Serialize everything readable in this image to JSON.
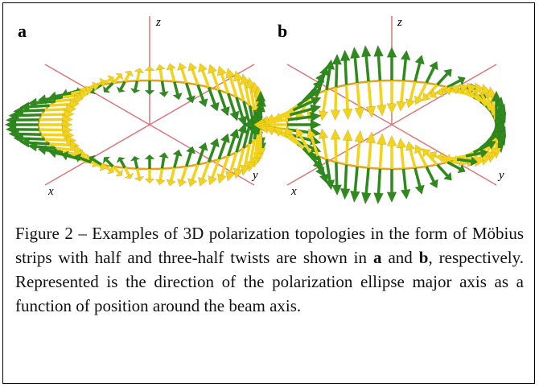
{
  "figure": {
    "panels": [
      {
        "label": "a",
        "axes": {
          "x": "x",
          "y": "y",
          "z": "z"
        }
      },
      {
        "label": "b",
        "axes": {
          "x": "x",
          "y": "y",
          "z": "z"
        }
      }
    ],
    "caption": {
      "before": "Figure 2 – Examples of 3D polarization topologies in the form of Möbius strips with half and three-half twists are shown in ",
      "bold_a": "a",
      "middle": " and ",
      "bold_b": "b",
      "after": ", respectively. Represented is the direction of the polarization ellipse major axis as a function of position around the beam axis."
    }
  }
}
